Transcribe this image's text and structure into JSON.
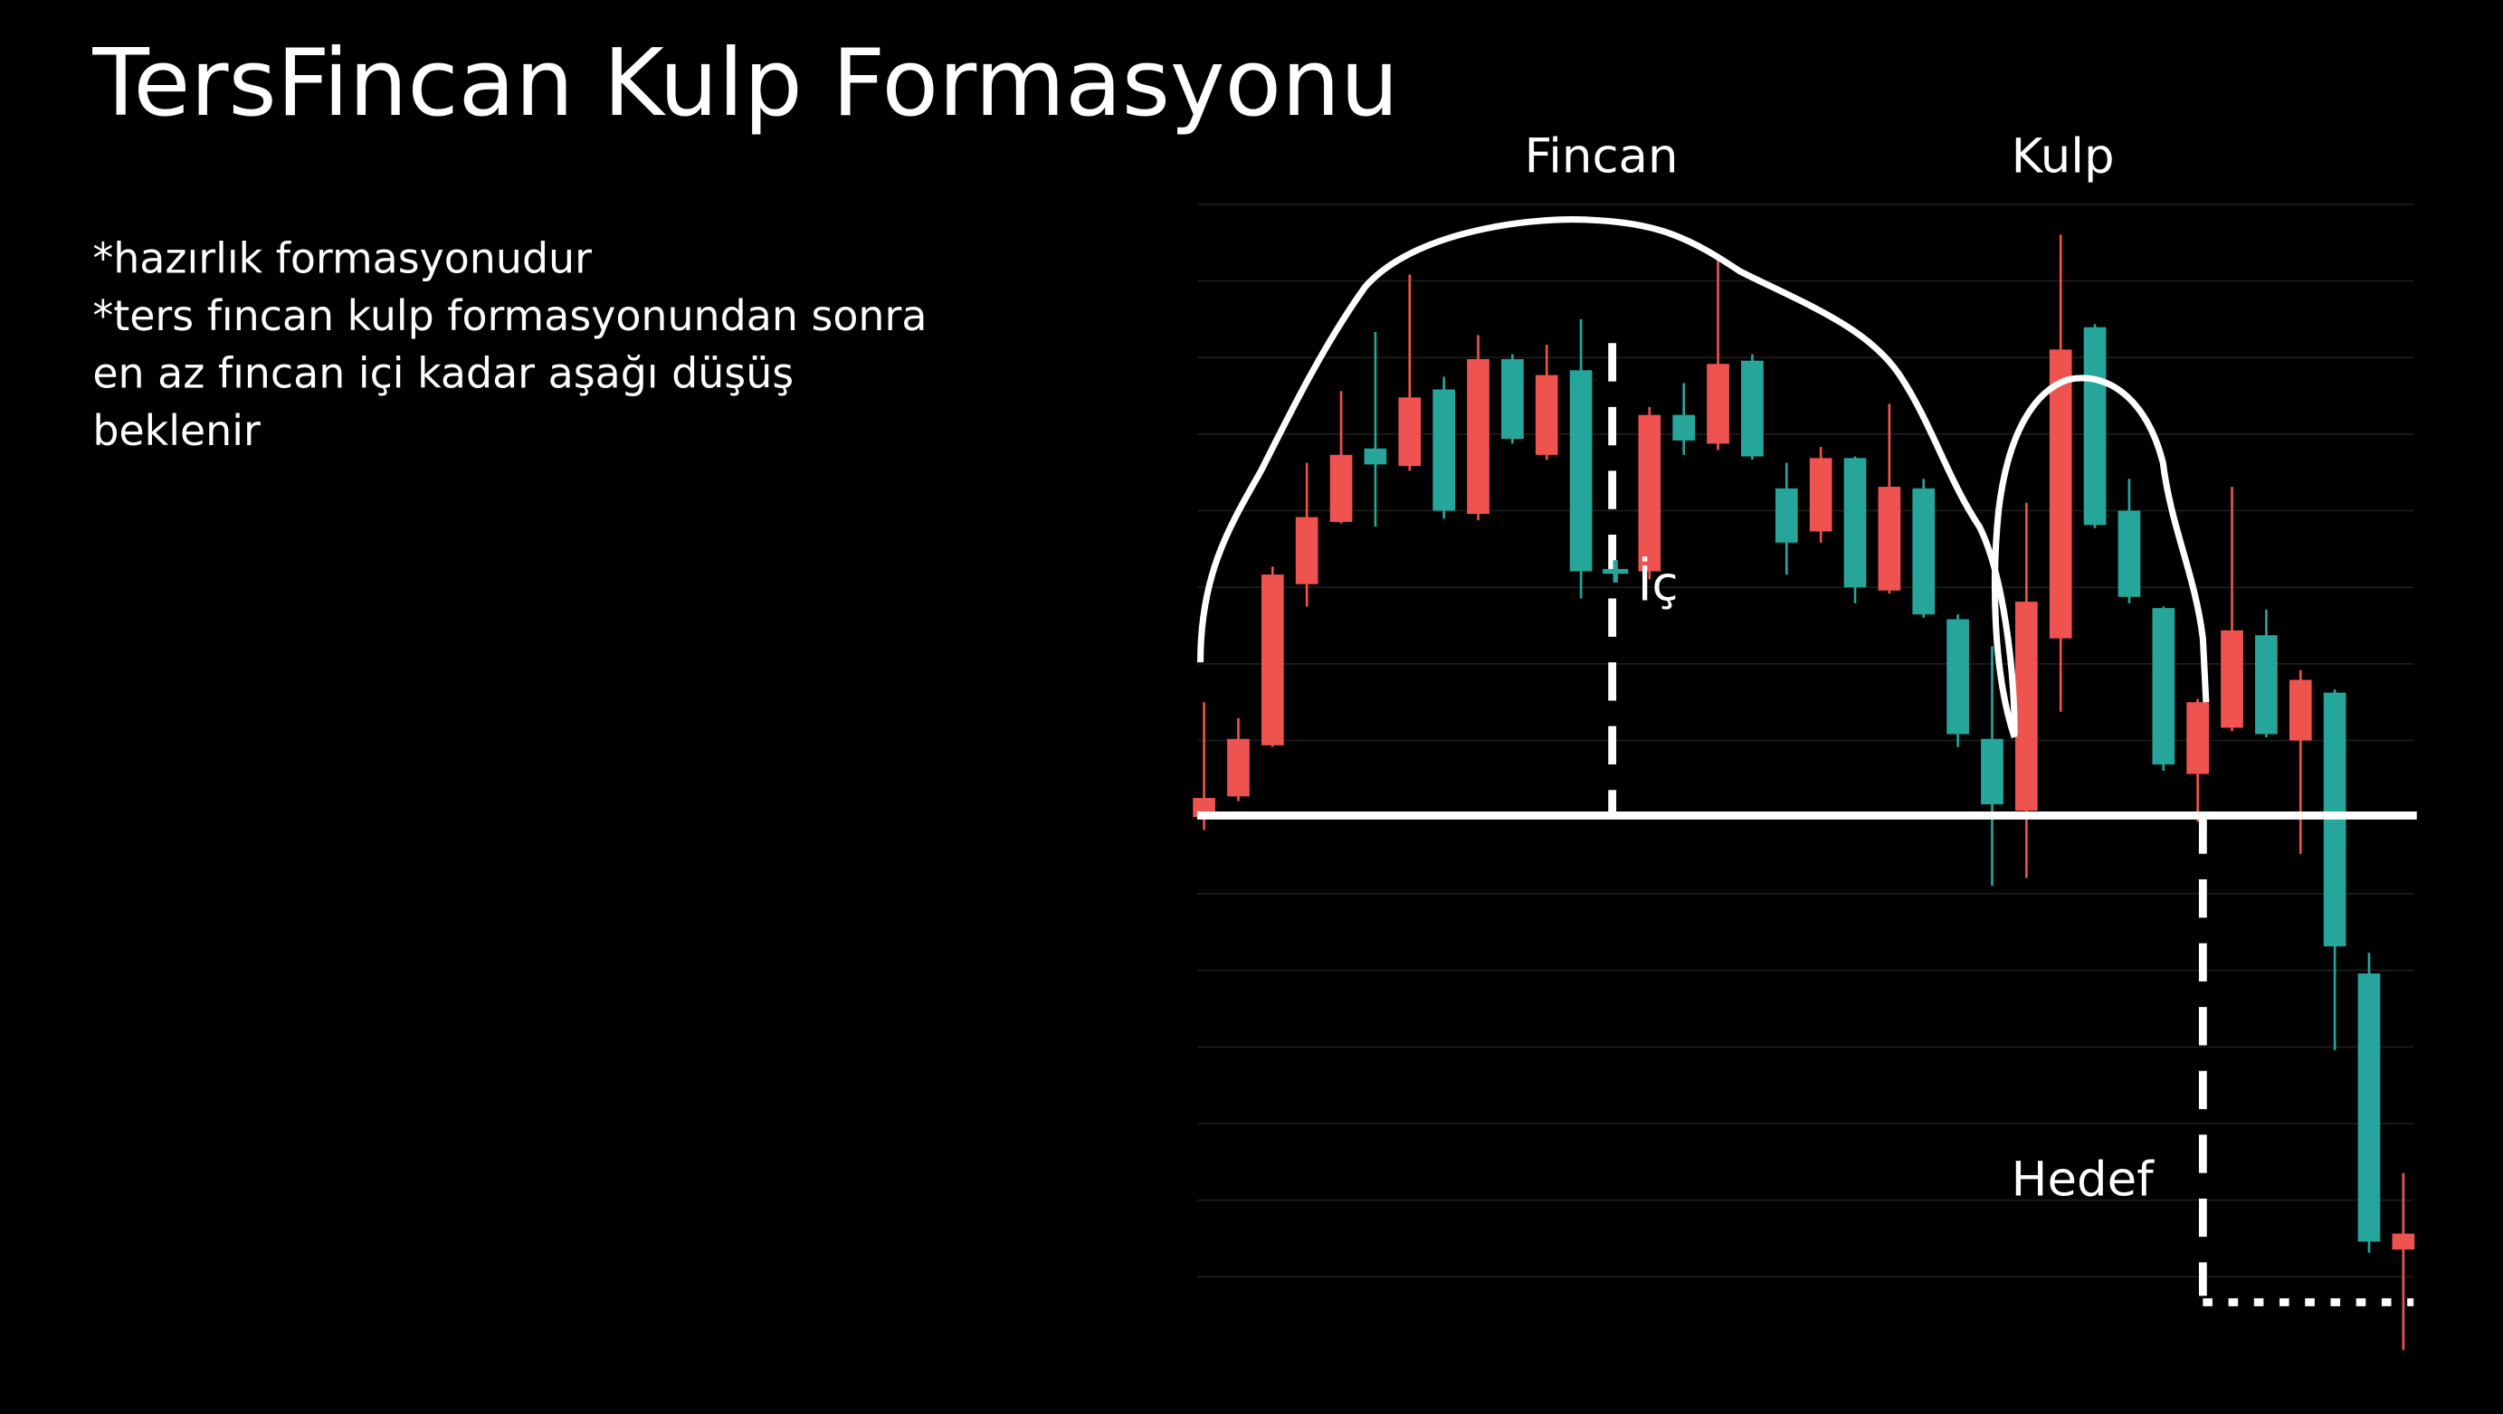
{
  "chart_data": {
    "type": "candlestick",
    "title": "TersFincan Kulp Formasyonu",
    "notes": [
      "*hazırlık formasyonudur",
      "*ters fıncan kulp formasyonundan sonra",
      "en az fıncan içi kadar aşağı düşüş",
      "beklenir"
    ],
    "annotations": [
      "Fincan",
      "Kulp",
      "İç",
      "Hedef"
    ],
    "up_color": "#ef5350",
    "down_color": "#26a69a",
    "x": [
      0,
      1,
      2,
      3,
      4,
      5,
      6,
      7,
      8,
      9,
      10,
      11,
      13,
      14,
      15,
      16,
      17,
      18,
      19,
      20,
      21,
      22,
      23,
      24,
      25,
      26,
      27,
      28,
      29,
      30,
      31,
      32,
      33,
      34,
      35
    ],
    "open": [
      336,
      349,
      381,
      482,
      521,
      567,
      556,
      604,
      526,
      623,
      563,
      616,
      490,
      588,
      570,
      622,
      542,
      515,
      561,
      478,
      542,
      460,
      385,
      340,
      448,
      643,
      528,
      467,
      363,
      392,
      450,
      384,
      414,
      238,
      65
    ],
    "high": [
      408,
      398,
      493,
      558,
      603,
      640,
      676,
      612,
      638,
      626,
      632,
      648,
      593,
      608,
      688,
      626,
      558,
      568,
      562,
      595,
      548,
      463,
      443,
      533,
      701,
      645,
      548,
      468,
      410,
      543,
      466,
      428,
      416,
      251,
      113
    ],
    "low": [
      328,
      346,
      380,
      468,
      520,
      518,
      553,
      523,
      522,
      570,
      560,
      473,
      485,
      563,
      566,
      560,
      488,
      508,
      470,
      476,
      461,
      380,
      293,
      298,
      402,
      517,
      470,
      365,
      333,
      390,
      386,
      313,
      190,
      63,
      2
    ],
    "close": [
      348,
      385,
      488,
      524,
      563,
      557,
      599,
      528,
      623,
      573,
      613,
      490,
      588,
      572,
      620,
      562,
      508,
      561,
      480,
      543,
      463,
      388,
      344,
      471,
      629,
      519,
      474,
      369,
      408,
      453,
      388,
      422,
      255,
      70,
      75
    ],
    "xlim": [
      -0.2,
      35.3
    ],
    "ylim": [
      0,
      720
    ],
    "yticks": [
      48,
      96,
      144,
      192,
      240,
      288,
      336,
      384,
      432,
      480,
      528,
      576,
      624,
      672,
      720
    ],
    "grid": true
  }
}
